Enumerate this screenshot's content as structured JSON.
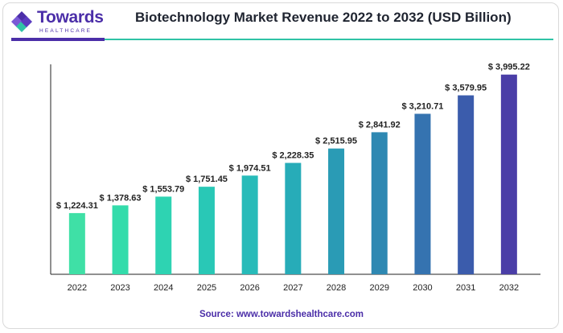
{
  "brand": {
    "name": "Towards",
    "subtitle": "HEALTHCARE"
  },
  "source_text": "Source: www.towardshealthcare.com",
  "colors": {
    "brand_purple": "#4b2ea8",
    "accent_teal": "#2fc3a6"
  },
  "chart_data": {
    "type": "bar",
    "title": "Biotechnology Market Revenue 2022 to 2032 (USD Billion)",
    "categories": [
      "2022",
      "2023",
      "2024",
      "2025",
      "2026",
      "2027",
      "2028",
      "2029",
      "2030",
      "2031",
      "2032"
    ],
    "values": [
      1224.31,
      1378.63,
      1553.79,
      1751.45,
      1974.51,
      2228.35,
      2515.95,
      2841.92,
      3210.71,
      3579.95,
      3995.22
    ],
    "value_labels": [
      "$ 1,224.31",
      "$ 1,378.63",
      "$ 1,553.79",
      "$ 1,751.45",
      "$ 1,974.51",
      "$ 2,228.35",
      "$ 2,515.95",
      "$ 2,841.92",
      "$ 3,210.71",
      "$ 3,579.95",
      "$ 3,995.22"
    ],
    "bar_colors": [
      "#3fe0a6",
      "#33dcab",
      "#2ed3b2",
      "#29c8b6",
      "#27bbb9",
      "#27acb8",
      "#2a9bb5",
      "#2e88b2",
      "#3573b0",
      "#3b5cac",
      "#4a3ea7"
    ],
    "xlabel": "",
    "ylabel": "",
    "ylim": [
      0,
      4200
    ],
    "grid": false,
    "legend": "none"
  }
}
